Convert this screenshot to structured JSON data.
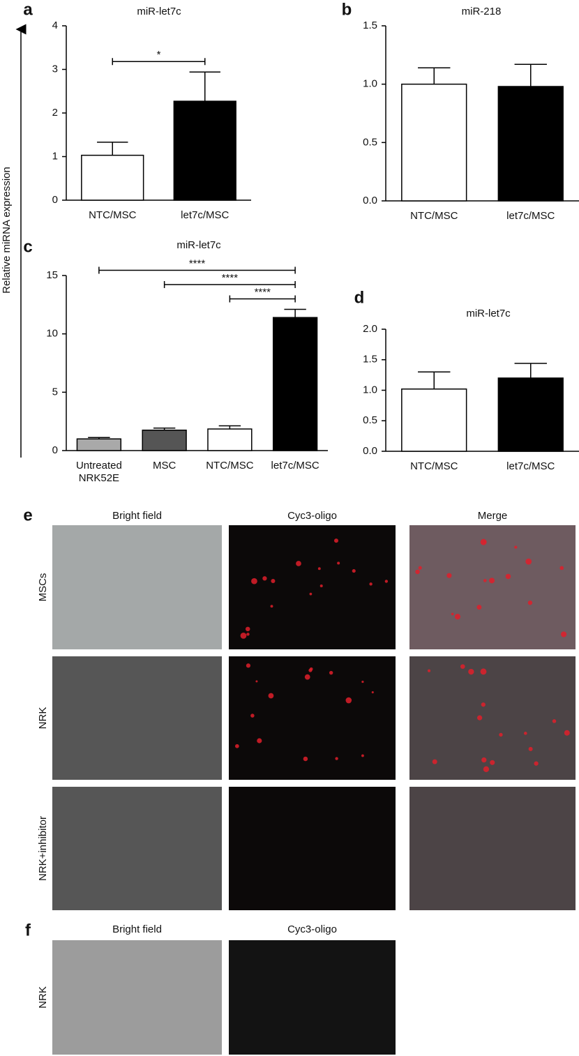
{
  "figure": {
    "y_axis_label": "Relative miRNA expression"
  },
  "chart_data": [
    {
      "type": "bar",
      "panel": "a",
      "title": "miR-let7c",
      "categories": [
        "NTC/MSC",
        "let7c/MSC"
      ],
      "values": [
        1.03,
        2.27
      ],
      "errors": [
        0.3,
        0.67
      ],
      "colors": [
        "#ffffff",
        "#000000"
      ],
      "ylim": [
        0,
        4
      ],
      "yticks": [
        0,
        1,
        2,
        3,
        4
      ],
      "annotations": [
        {
          "text": "*",
          "between": [
            0,
            1
          ]
        }
      ]
    },
    {
      "type": "bar",
      "panel": "b",
      "title": "miR-218",
      "categories": [
        "NTC/MSC",
        "let7c/MSC"
      ],
      "values": [
        1.0,
        0.98
      ],
      "errors": [
        0.14,
        0.19
      ],
      "colors": [
        "#ffffff",
        "#000000"
      ],
      "ylim": [
        0,
        1.5
      ],
      "yticks": [
        {
          "value": 0,
          "label": "0.0"
        },
        0.5,
        {
          "value": 1,
          "label": "1.0"
        },
        1.5
      ]
    },
    {
      "type": "bar",
      "panel": "c",
      "title": "miR-let7c",
      "categories": [
        [
          "Untreated",
          "NRK52E"
        ],
        "MSC",
        "NTC/MSC",
        "let7c/MSC"
      ],
      "values": [
        1.0,
        1.75,
        1.85,
        11.4
      ],
      "errors": [
        0.12,
        0.18,
        0.27,
        0.7
      ],
      "colors": [
        "#a9a9a9",
        "#555555",
        "#ffffff",
        "#000000"
      ],
      "ylim": [
        0,
        15
      ],
      "yticks": [
        0,
        5,
        10,
        15
      ],
      "annotations": [
        {
          "text": "****",
          "between": [
            0,
            3
          ]
        },
        {
          "text": "****",
          "between": [
            1,
            3
          ]
        },
        {
          "text": "****",
          "between": [
            2,
            3
          ]
        }
      ]
    },
    {
      "type": "bar",
      "panel": "d",
      "title": "miR-let7c",
      "categories": [
        "NTC/MSC",
        "let7c/MSC"
      ],
      "values": [
        1.02,
        1.2
      ],
      "errors": [
        0.28,
        0.24
      ],
      "colors": [
        "#ffffff",
        "#000000"
      ],
      "ylim": [
        0,
        2
      ],
      "yticks": [
        {
          "value": 0,
          "label": "0.0"
        },
        0.5,
        {
          "value": 1,
          "label": "1.0"
        },
        1.5,
        {
          "value": 2,
          "label": "2.0"
        }
      ]
    }
  ],
  "micrographs": [
    {
      "panel": "e",
      "columns": [
        "Bright field",
        "Cyc3-oligo",
        "Merge"
      ],
      "rows": [
        "MSCs",
        "NRK",
        "NRK+inhibitor"
      ]
    },
    {
      "panel": "f",
      "columns": [
        "Bright field",
        "Cyc3-oligo"
      ],
      "rows": [
        "NRK"
      ]
    }
  ]
}
